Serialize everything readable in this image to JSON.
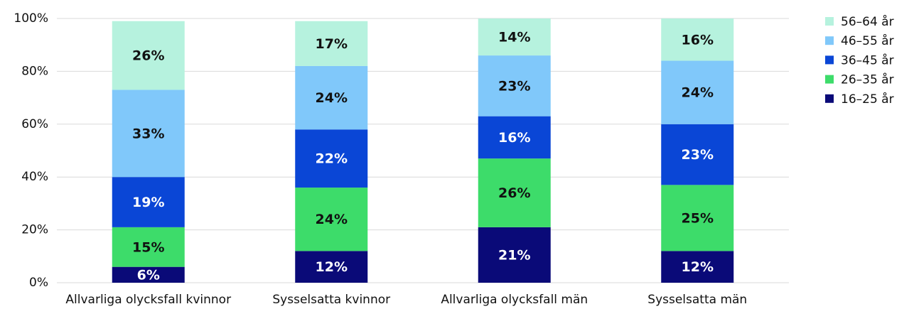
{
  "chart_data": {
    "type": "stacked_bar",
    "categories": [
      "Allvarliga olycksfall kvinnor",
      "Sysselsatta kvinnor",
      "Allvarliga olycksfall män",
      "Sysselsatta män"
    ],
    "series": [
      {
        "name": "16–25 år",
        "color": "#0a0a78",
        "label_color": "#ffffff",
        "values": [
          6,
          12,
          21,
          12
        ],
        "value_labels": [
          "6%",
          "12%",
          "21%",
          "12%"
        ]
      },
      {
        "name": "26–35 år",
        "color": "#3ddc6a",
        "label_color": "#111111",
        "values": [
          15,
          24,
          26,
          25
        ],
        "value_labels": [
          "15%",
          "24%",
          "26%",
          "25%"
        ]
      },
      {
        "name": "36–45 år",
        "color": "#0a46d6",
        "label_color": "#ffffff",
        "values": [
          19,
          22,
          16,
          23
        ],
        "value_labels": [
          "19%",
          "22%",
          "16%",
          "23%"
        ]
      },
      {
        "name": "46–55 år",
        "color": "#80c8fa",
        "label_color": "#111111",
        "values": [
          33,
          24,
          23,
          24
        ],
        "value_labels": [
          "33%",
          "24%",
          "23%",
          "24%"
        ]
      },
      {
        "name": "56–64 år",
        "color": "#b6f2de",
        "label_color": "#111111",
        "values": [
          26,
          17,
          14,
          16
        ],
        "value_labels": [
          "26%",
          "17%",
          "14%",
          "16%"
        ]
      }
    ],
    "ylim": [
      0,
      100
    ],
    "yticks": [
      {
        "value": 0,
        "label": "0%"
      },
      {
        "value": 20,
        "label": "20%"
      },
      {
        "value": 40,
        "label": "40%"
      },
      {
        "value": 60,
        "label": "60%"
      },
      {
        "value": 80,
        "label": "80%"
      },
      {
        "value": 100,
        "label": "100%"
      }
    ],
    "grid": true,
    "legend": "right"
  }
}
